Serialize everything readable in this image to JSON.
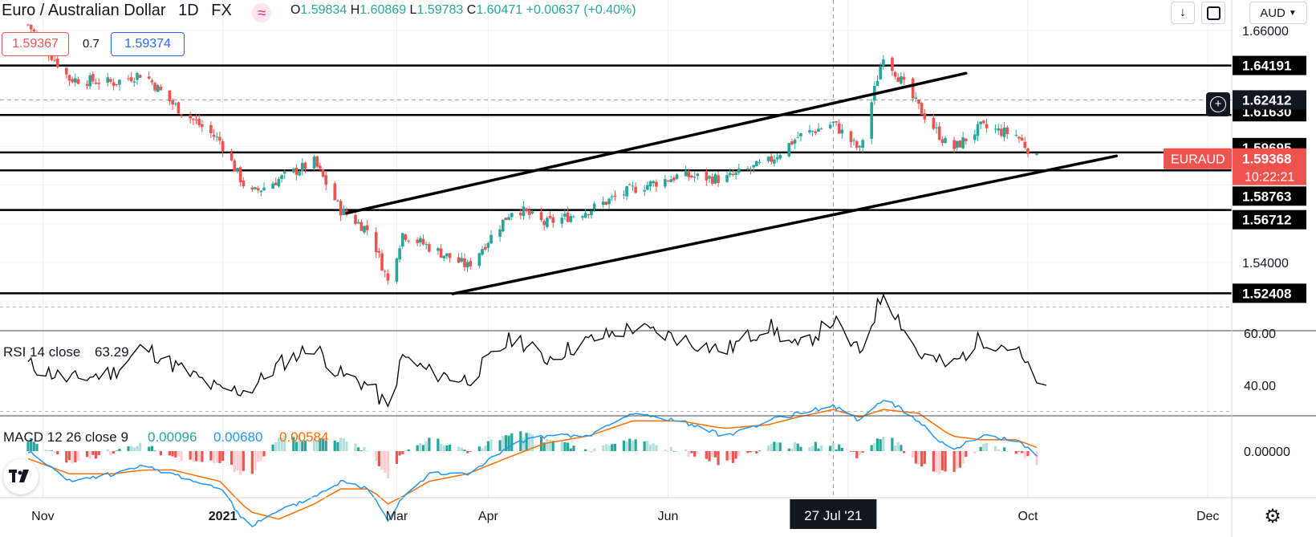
{
  "header": {
    "symbol": "Euro / Australian Dollar",
    "interval": "1D",
    "exchange": "FX",
    "ohlc": {
      "o_label": "O",
      "o": "1.59834",
      "h_label": "H",
      "h": "1.60869",
      "l_label": "L",
      "l": "1.59783",
      "c_label": "C",
      "c": "1.60471",
      "change": "+0.00637 (+0.40%)"
    },
    "sell_price": "1.59367",
    "spread": "0.7",
    "buy_price": "1.59374",
    "currency": "AUD",
    "colors": {
      "up": "#26a69a",
      "down": "#ef5350",
      "accent": "#2962ff"
    }
  },
  "chart_data": [
    {
      "type": "candlestick",
      "pane": "price",
      "series_name": "EURAUD",
      "x_tick_labels": [
        "Nov",
        "2021",
        "Mar",
        "Apr",
        "Jun",
        "27 Jul '21",
        "Oct",
        "Dec"
      ],
      "y_tick_labels": [
        "1.66000",
        "1.54000"
      ],
      "ylim": [
        1.515,
        1.668
      ],
      "current_price": "1.59368",
      "countdown": "10:22:21",
      "crosshair_price": "1.62412",
      "crosshair_date": "27 Jul '21",
      "horizontal_levels": [
        1.64191,
        1.6163,
        1.59695,
        1.58763,
        1.56712,
        1.52408
      ],
      "horizontal_level_labels": [
        "1.64191",
        "1.61630",
        "1.59695",
        "1.58763",
        "1.56712",
        "1.52408"
      ],
      "channel_lines": [
        {
          "from": [
            "2021-02-12",
            1.5655
          ],
          "to": [
            "2021-09-10",
            1.6379
          ]
        },
        {
          "from": [
            "2021-03-20",
            1.5238
          ],
          "to": [
            "2021-10-31",
            1.5951
          ]
        }
      ],
      "close_path": {
        "dates": [
          "2020-10-27",
          "2020-11-10",
          "2020-11-25",
          "2020-12-05",
          "2020-12-15",
          "2020-12-31",
          "2021-01-10",
          "2021-01-20",
          "2021-02-01",
          "2021-02-10",
          "2021-02-20",
          "2021-02-26",
          "2021-03-03",
          "2021-03-12",
          "2021-03-25",
          "2021-04-10",
          "2021-04-20",
          "2021-05-05",
          "2021-05-20",
          "2021-06-05",
          "2021-06-20",
          "2021-07-05",
          "2021-07-15",
          "2021-07-27",
          "2021-08-05",
          "2021-08-13",
          "2021-08-25",
          "2021-09-05",
          "2021-09-15",
          "2021-09-27",
          "2021-10-04"
        ],
        "values": [
          1.663,
          1.635,
          1.633,
          1.638,
          1.622,
          1.603,
          1.575,
          1.583,
          1.592,
          1.567,
          1.556,
          1.53,
          1.555,
          1.548,
          1.538,
          1.569,
          1.56,
          1.567,
          1.578,
          1.585,
          1.583,
          1.592,
          1.605,
          1.612,
          1.598,
          1.648,
          1.62,
          1.598,
          1.61,
          1.606,
          1.5937
        ]
      }
    },
    {
      "type": "line",
      "pane": "rsi",
      "title": "RSI 14 close",
      "value_label": "63.29",
      "y_tick_labels": [
        "60.00",
        "40.00"
      ],
      "ylim": [
        28,
        78
      ],
      "levels": [
        70,
        30
      ],
      "x": [
        "2020-10-27",
        "2020-11-10",
        "2020-11-25",
        "2020-12-05",
        "2020-12-15",
        "2020-12-31",
        "2021-01-10",
        "2021-01-20",
        "2021-02-01",
        "2021-02-10",
        "2021-02-20",
        "2021-02-26",
        "2021-03-03",
        "2021-03-12",
        "2021-03-25",
        "2021-04-10",
        "2021-04-20",
        "2021-05-05",
        "2021-05-20",
        "2021-06-05",
        "2021-06-20",
        "2021-07-05",
        "2021-07-15",
        "2021-07-27",
        "2021-08-05",
        "2021-08-13",
        "2021-08-25",
        "2021-09-05",
        "2021-09-15",
        "2021-09-27",
        "2021-10-04"
      ],
      "values": [
        48,
        42,
        45,
        55,
        48,
        38,
        38,
        48,
        55,
        44,
        40,
        31,
        51,
        45,
        42,
        59,
        50,
        57,
        62,
        58,
        53,
        63,
        54,
        65,
        52,
        76,
        52,
        47,
        58,
        54,
        40
      ]
    },
    {
      "type": "line+histogram",
      "pane": "macd",
      "title": "MACD 12 26 close 9",
      "values_labels": [
        "0.00096",
        "0.00680",
        "0.00584"
      ],
      "y_tick_labels": [
        "0.00000"
      ],
      "ylim": [
        -0.024,
        0.017
      ],
      "x": [
        "2020-10-27",
        "2020-11-10",
        "2020-11-25",
        "2020-12-05",
        "2020-12-15",
        "2020-12-31",
        "2021-01-10",
        "2021-01-20",
        "2021-02-01",
        "2021-02-10",
        "2021-02-20",
        "2021-02-26",
        "2021-03-03",
        "2021-03-12",
        "2021-03-25",
        "2021-04-10",
        "2021-04-20",
        "2021-05-05",
        "2021-05-20",
        "2021-06-05",
        "2021-06-20",
        "2021-07-05",
        "2021-07-15",
        "2021-07-27",
        "2021-08-05",
        "2021-08-13",
        "2021-08-25",
        "2021-09-05",
        "2021-09-15",
        "2021-09-27",
        "2021-10-04"
      ],
      "series": [
        {
          "name": "MACD",
          "color": "#2196f3",
          "values": [
            0.0,
            -0.008,
            -0.006,
            -0.004,
            -0.006,
            -0.01,
            -0.02,
            -0.016,
            -0.012,
            -0.008,
            -0.01,
            -0.018,
            -0.012,
            -0.006,
            -0.006,
            0.002,
            0.004,
            0.004,
            0.01,
            0.008,
            0.004,
            0.008,
            0.01,
            0.012,
            0.008,
            0.014,
            0.008,
            0.0,
            0.004,
            0.003,
            -0.001
          ]
        },
        {
          "name": "Signal",
          "color": "#ff6d00",
          "values": [
            -0.002,
            -0.006,
            -0.006,
            -0.005,
            -0.005,
            -0.008,
            -0.016,
            -0.018,
            -0.014,
            -0.01,
            -0.01,
            -0.014,
            -0.012,
            -0.008,
            -0.006,
            -0.001,
            0.002,
            0.004,
            0.008,
            0.008,
            0.006,
            0.007,
            0.009,
            0.011,
            0.009,
            0.011,
            0.01,
            0.004,
            0.003,
            0.003,
            0.001
          ]
        }
      ]
    }
  ]
}
